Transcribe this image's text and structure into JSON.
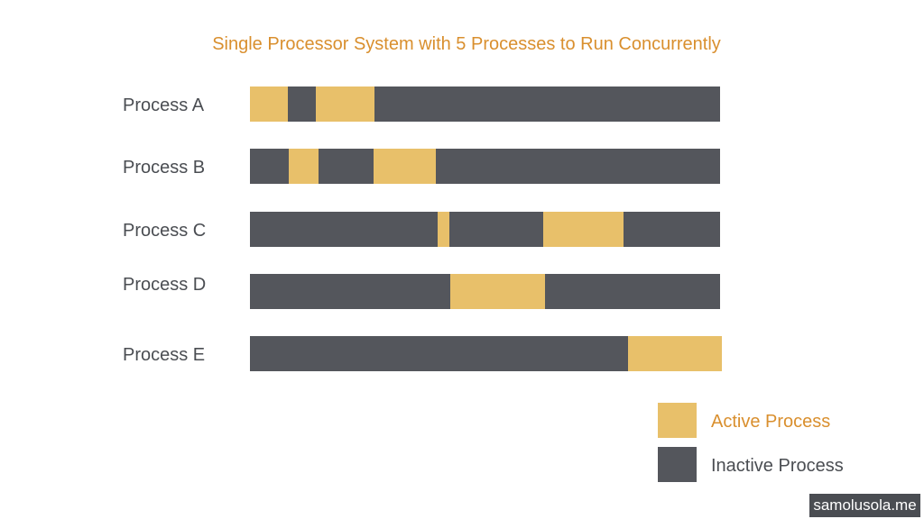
{
  "chart_data": {
    "type": "gantt",
    "title": "Single Processor System with 5 Processes to Run Concurrently",
    "timeline_range": [
      0,
      100
    ],
    "processes": [
      {
        "name": "Process A",
        "active": [
          [
            0,
            8.1
          ],
          [
            14.0,
            26.5
          ]
        ]
      },
      {
        "name": "Process B",
        "active": [
          [
            8.3,
            14.6
          ],
          [
            26.3,
            39.5
          ]
        ]
      },
      {
        "name": "Process C",
        "active": [
          [
            39.9,
            42.4
          ],
          [
            62.4,
            79.5
          ]
        ]
      },
      {
        "name": "Process D",
        "active": [
          [
            42.6,
            62.8
          ]
        ]
      },
      {
        "name": "Process E",
        "active": [
          [
            80.2,
            100
          ]
        ]
      }
    ],
    "legend": [
      {
        "label": "Active Process",
        "color": "#e8c06a"
      },
      {
        "label": "Inactive Process",
        "color": "#54565c"
      }
    ],
    "legend_placement": "bottom-right"
  },
  "watermark": "samolusola.me",
  "colors": {
    "title": "#d98f2e",
    "active": "#e8c06a",
    "inactive": "#54565c"
  }
}
